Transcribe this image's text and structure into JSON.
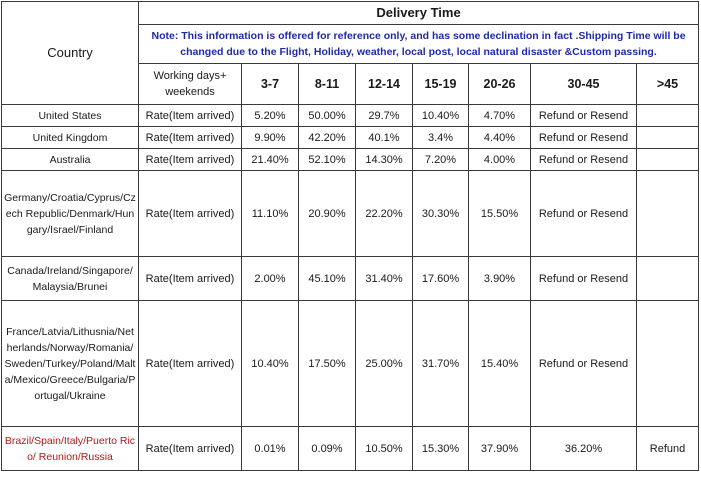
{
  "header": {
    "title": "Delivery Time",
    "country_label": "Country",
    "note": "Note: This information is offered for reference only, and has some declination in fact .Shipping Time will be changed due to the Flight, Holiday, weather, local post, local natural disaster &Custom passing.",
    "working_days_label": "Working days+ weekends",
    "ranges": [
      "3-7",
      "8-11",
      "12-14",
      "15-19",
      "20-26",
      "30-45",
      ">45"
    ]
  },
  "rows": [
    {
      "country": "United States",
      "type": "Rate(Item arrived)",
      "values": [
        "5.20%",
        "50.00%",
        "29.7%",
        "10.40%",
        "4.70%",
        "Refund or Resend",
        ""
      ]
    },
    {
      "country": "United Kingdom",
      "type": "Rate(Item arrived)",
      "values": [
        "9.90%",
        "42.20%",
        "40.1%",
        "3.4%",
        "4.40%",
        "Refund or Resend",
        ""
      ]
    },
    {
      "country": "Australia",
      "type": "Rate(Item arrived)",
      "values": [
        "21.40%",
        "52.10%",
        "14.30%",
        "7.20%",
        "4.00%",
        "Refund or Resend",
        ""
      ]
    },
    {
      "country": "Germany/Croatia/Cyprus/Czech Republic/Denmark/Hungary/Israel/Finland",
      "type": "Rate(Item arrived)",
      "values": [
        "11.10%",
        "20.90%",
        "22.20%",
        "30.30%",
        "15.50%",
        "Refund or Resend",
        ""
      ]
    },
    {
      "country": "Canada/Ireland/Singapore/Malaysia/Brunei",
      "type": "Rate(Item arrived)",
      "values": [
        "2.00%",
        "45.10%",
        "31.40%",
        "17.60%",
        "3.90%",
        "Refund or Resend",
        ""
      ]
    },
    {
      "country": "France/Latvia/Lithusnia/Netherlands/Norway/Romania/Sweden/Turkey/Poland/Malta/Mexico/Greece/Bulgaria/Portugal/Ukraine",
      "type": "Rate(Item arrived)",
      "values": [
        "10.40%",
        "17.50%",
        "25.00%",
        "31.70%",
        "15.40%",
        "Refund or Resend",
        ""
      ]
    },
    {
      "country": "Brazil/Spain/Italy/Puerto Rico/ Reunion/Russia",
      "type": "Rate(Item arrived)",
      "values": [
        "0.01%",
        "0.09%",
        "10.50%",
        "15.30%",
        "37.90%",
        "36.20%",
        "Refund"
      ]
    }
  ],
  "colors": {
    "note_text": "#1f2aa8",
    "highlight_country": "#b3181b",
    "border": "#3a3a3a"
  }
}
